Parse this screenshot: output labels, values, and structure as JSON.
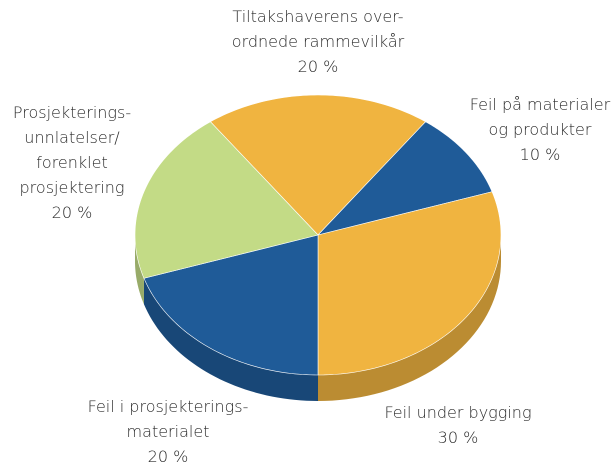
{
  "chart_data": {
    "type": "pie",
    "categories": [
      "Tiltakshaverens over-\nordnede rammevilkår",
      "Feil på materialer\nog produkter",
      "Feil under bygging",
      "Feil i prosjekterings-\nmaterialet",
      "Prosjekterings-\nunnlatelser/\nforenklet\nprosjektering"
    ],
    "values": [
      20,
      10,
      30,
      20,
      20
    ],
    "value_labels": [
      "20 %",
      "10 %",
      "30 %",
      "20 %",
      "20 %"
    ],
    "colors": [
      "#f0b440",
      "#1f5b98",
      "#f0b440",
      "#1f5b98",
      "#c3db86"
    ]
  }
}
